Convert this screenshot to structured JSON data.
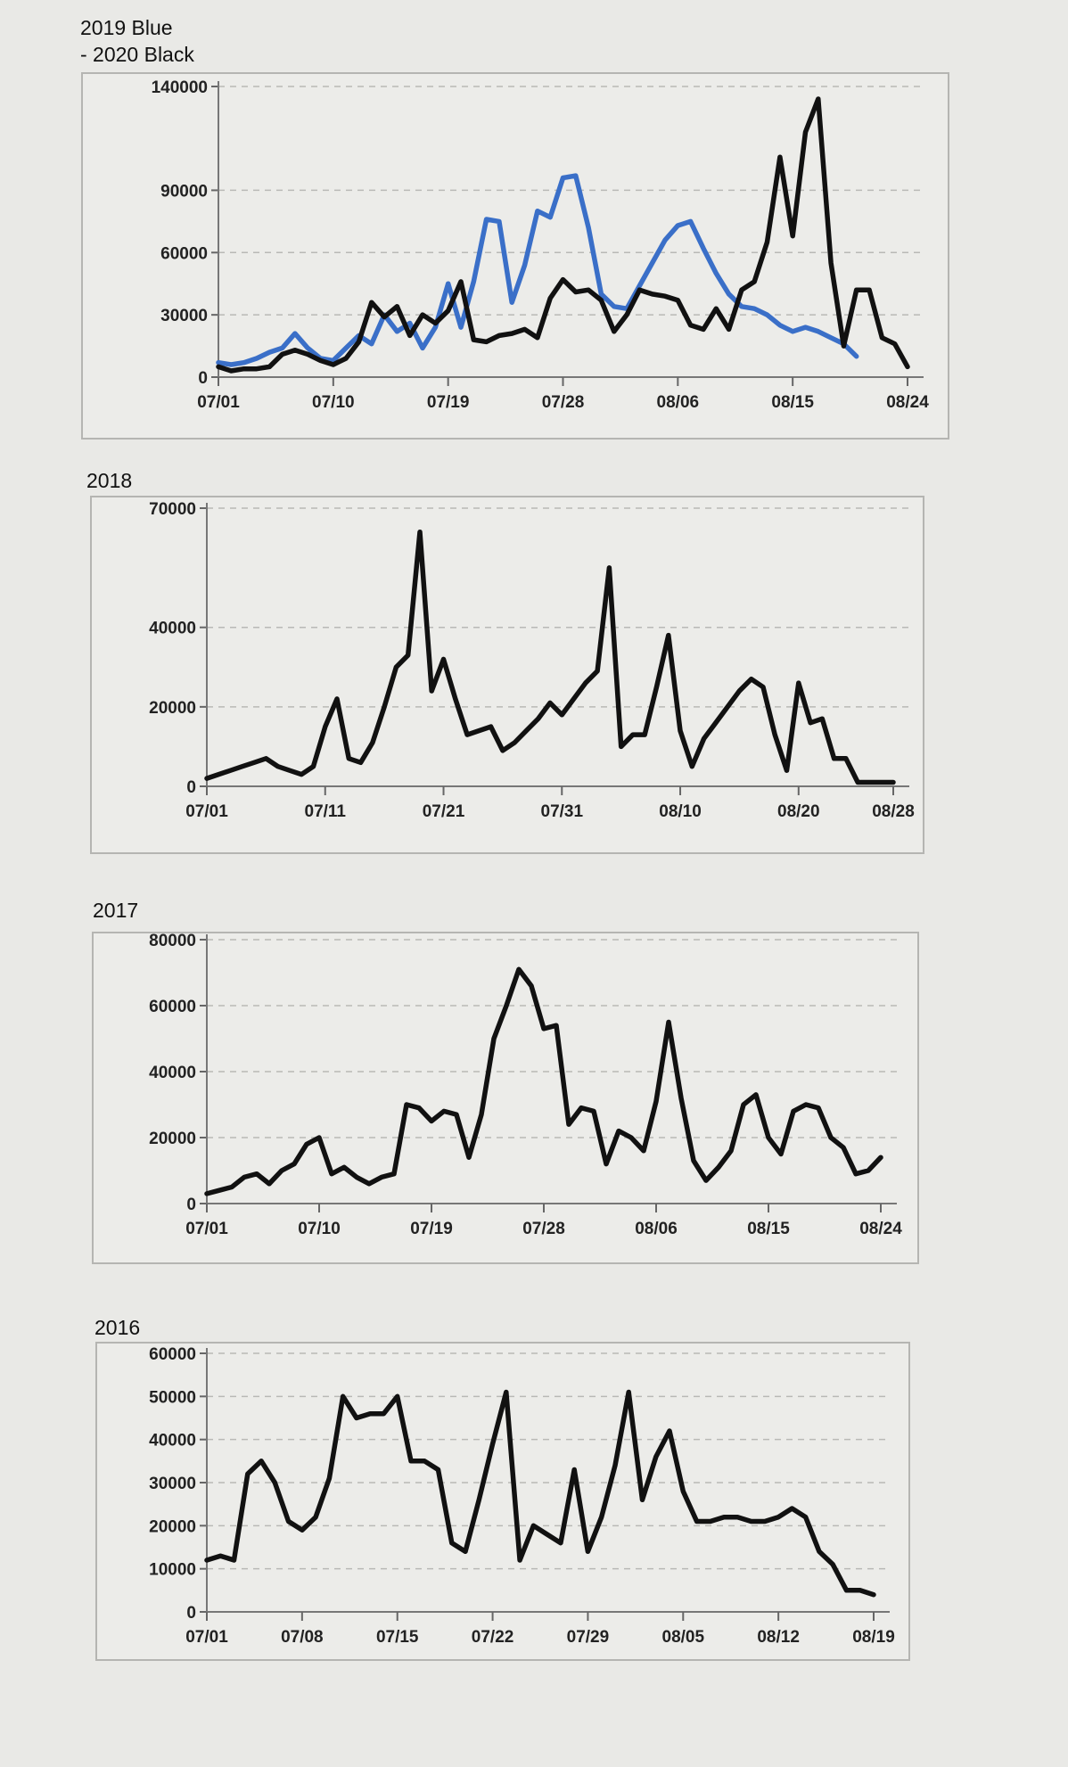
{
  "chart_data": [
    {
      "type": "line",
      "title_lines": [
        "2019 Blue",
        "- 2020 Black"
      ],
      "ylim": [
        0,
        140000
      ],
      "yticks": [
        0,
        30000,
        60000,
        90000,
        140000
      ],
      "xticks": [
        "07/01",
        "07/10",
        "07/19",
        "07/28",
        "08/06",
        "08/15",
        "08/24"
      ],
      "x_start": "07/01",
      "x_end": "08/24",
      "grid": true,
      "series": [
        {
          "color": "#3a6fc8",
          "x": [
            "07/01",
            "07/02",
            "07/03",
            "07/04",
            "07/05",
            "07/06",
            "07/07",
            "07/08",
            "07/09",
            "07/10",
            "07/11",
            "07/12",
            "07/13",
            "07/14",
            "07/15",
            "07/16",
            "07/17",
            "07/18",
            "07/19",
            "07/20",
            "07/21",
            "07/22",
            "07/23",
            "07/24",
            "07/25",
            "07/26",
            "07/27",
            "07/28",
            "07/29",
            "07/30",
            "07/31",
            "08/01",
            "08/02",
            "08/03",
            "08/04",
            "08/05",
            "08/06",
            "08/07",
            "08/08",
            "08/09",
            "08/10",
            "08/11",
            "08/12",
            "08/13",
            "08/14",
            "08/15",
            "08/16",
            "08/17",
            "08/18",
            "08/19",
            "08/20"
          ],
          "values": [
            7000,
            6000,
            7000,
            9000,
            12000,
            14000,
            21000,
            14000,
            9000,
            8000,
            14000,
            20000,
            16000,
            30000,
            22000,
            26000,
            14000,
            24000,
            45000,
            24000,
            46000,
            76000,
            75000,
            36000,
            54000,
            80000,
            77000,
            96000,
            97000,
            72000,
            40000,
            34000,
            33000,
            44000,
            55000,
            66000,
            73000,
            75000,
            62000,
            50000,
            40000,
            34000,
            33000,
            30000,
            25000,
            22000,
            24000,
            22000,
            19000,
            16000,
            10000
          ]
        },
        {
          "color": "#111111",
          "x": [
            "07/01",
            "07/02",
            "07/03",
            "07/04",
            "07/05",
            "07/06",
            "07/07",
            "07/08",
            "07/09",
            "07/10",
            "07/11",
            "07/12",
            "07/13",
            "07/14",
            "07/15",
            "07/16",
            "07/17",
            "07/18",
            "07/19",
            "07/20",
            "07/21",
            "07/22",
            "07/23",
            "07/24",
            "07/25",
            "07/26",
            "07/27",
            "07/28",
            "07/29",
            "07/30",
            "07/31",
            "08/01",
            "08/02",
            "08/03",
            "08/04",
            "08/05",
            "08/06",
            "08/07",
            "08/08",
            "08/09",
            "08/10",
            "08/11",
            "08/12",
            "08/13",
            "08/14",
            "08/15",
            "08/16",
            "08/17",
            "08/18",
            "08/19",
            "08/20",
            "08/21",
            "08/22",
            "08/23",
            "08/24"
          ],
          "values": [
            5000,
            3000,
            4000,
            4000,
            5000,
            11000,
            13000,
            11000,
            8000,
            6000,
            9000,
            17000,
            36000,
            29000,
            34000,
            20000,
            30000,
            26000,
            32000,
            46000,
            18000,
            17000,
            20000,
            21000,
            23000,
            19000,
            38000,
            47000,
            41000,
            42000,
            37000,
            22000,
            30000,
            42000,
            40000,
            39000,
            37000,
            25000,
            23000,
            33000,
            23000,
            42000,
            46000,
            65000,
            106000,
            68000,
            118000,
            134000,
            55000,
            15000,
            42000,
            42000,
            19000,
            16000,
            5000
          ]
        }
      ]
    },
    {
      "type": "line",
      "title_lines": [
        "2018"
      ],
      "ylim": [
        0,
        70000
      ],
      "yticks": [
        0,
        20000,
        40000,
        70000
      ],
      "xticks": [
        "07/01",
        "07/11",
        "07/21",
        "07/31",
        "08/10",
        "08/20",
        "08/28"
      ],
      "x_start": "07/01",
      "x_end": "08/28",
      "grid": true,
      "series": [
        {
          "color": "#111111",
          "x": [
            "07/01",
            "07/02",
            "07/03",
            "07/04",
            "07/05",
            "07/06",
            "07/07",
            "07/08",
            "07/09",
            "07/10",
            "07/11",
            "07/12",
            "07/13",
            "07/14",
            "07/15",
            "07/16",
            "07/17",
            "07/18",
            "07/19",
            "07/20",
            "07/21",
            "07/22",
            "07/23",
            "07/24",
            "07/25",
            "07/26",
            "07/27",
            "07/28",
            "07/29",
            "07/30",
            "07/31",
            "08/01",
            "08/02",
            "08/03",
            "08/04",
            "08/05",
            "08/06",
            "08/07",
            "08/08",
            "08/09",
            "08/10",
            "08/11",
            "08/12",
            "08/13",
            "08/14",
            "08/15",
            "08/16",
            "08/17",
            "08/18",
            "08/19",
            "08/20",
            "08/21",
            "08/22",
            "08/23",
            "08/24",
            "08/25",
            "08/26",
            "08/27",
            "08/28"
          ],
          "values": [
            2000,
            3000,
            4000,
            5000,
            6000,
            7000,
            5000,
            4000,
            3000,
            5000,
            15000,
            22000,
            7000,
            6000,
            11000,
            20000,
            30000,
            33000,
            64000,
            24000,
            32000,
            22000,
            13000,
            14000,
            15000,
            9000,
            11000,
            14000,
            17000,
            21000,
            18000,
            22000,
            26000,
            29000,
            55000,
            10000,
            13000,
            13000,
            25000,
            38000,
            14000,
            5000,
            12000,
            16000,
            20000,
            24000,
            27000,
            25000,
            13000,
            4000,
            26000,
            16000,
            17000,
            7000,
            7000,
            1000,
            1000,
            1000,
            1000
          ]
        }
      ]
    },
    {
      "type": "line",
      "title_lines": [
        "2017"
      ],
      "ylim": [
        0,
        80000
      ],
      "yticks": [
        0,
        20000,
        40000,
        60000,
        80000
      ],
      "xticks": [
        "07/01",
        "07/10",
        "07/19",
        "07/28",
        "08/06",
        "08/15",
        "08/24"
      ],
      "x_start": "07/01",
      "x_end": "08/24",
      "grid": true,
      "series": [
        {
          "color": "#111111",
          "x": [
            "07/01",
            "07/02",
            "07/03",
            "07/04",
            "07/05",
            "07/06",
            "07/07",
            "07/08",
            "07/09",
            "07/10",
            "07/11",
            "07/12",
            "07/13",
            "07/14",
            "07/15",
            "07/16",
            "07/17",
            "07/18",
            "07/19",
            "07/20",
            "07/21",
            "07/22",
            "07/23",
            "07/24",
            "07/25",
            "07/26",
            "07/27",
            "07/28",
            "07/29",
            "07/30",
            "07/31",
            "08/01",
            "08/02",
            "08/03",
            "08/04",
            "08/05",
            "08/06",
            "08/07",
            "08/08",
            "08/09",
            "08/10",
            "08/11",
            "08/12",
            "08/13",
            "08/14",
            "08/15",
            "08/16",
            "08/17",
            "08/18",
            "08/19",
            "08/20",
            "08/21",
            "08/22",
            "08/23",
            "08/24"
          ],
          "values": [
            3000,
            4000,
            5000,
            8000,
            9000,
            6000,
            10000,
            12000,
            18000,
            20000,
            9000,
            11000,
            8000,
            6000,
            8000,
            9000,
            30000,
            29000,
            25000,
            28000,
            27000,
            14000,
            27000,
            50000,
            60000,
            71000,
            66000,
            53000,
            54000,
            24000,
            29000,
            28000,
            12000,
            22000,
            20000,
            16000,
            31000,
            55000,
            32000,
            13000,
            7000,
            11000,
            16000,
            30000,
            33000,
            20000,
            15000,
            28000,
            30000,
            29000,
            20000,
            17000,
            9000,
            10000,
            14000
          ]
        }
      ]
    },
    {
      "type": "line",
      "title_lines": [
        "2016"
      ],
      "ylim": [
        0,
        60000
      ],
      "yticks": [
        0,
        10000,
        20000,
        30000,
        40000,
        50000,
        60000
      ],
      "xticks": [
        "07/01",
        "07/08",
        "07/15",
        "07/22",
        "07/29",
        "08/05",
        "08/12",
        "08/19"
      ],
      "x_start": "07/01",
      "x_end": "08/19",
      "grid": true,
      "series": [
        {
          "color": "#111111",
          "x": [
            "07/01",
            "07/02",
            "07/03",
            "07/04",
            "07/05",
            "07/06",
            "07/07",
            "07/08",
            "07/09",
            "07/10",
            "07/11",
            "07/12",
            "07/13",
            "07/14",
            "07/15",
            "07/16",
            "07/17",
            "07/18",
            "07/19",
            "07/20",
            "07/21",
            "07/22",
            "07/23",
            "07/24",
            "07/25",
            "07/26",
            "07/27",
            "07/28",
            "07/29",
            "07/30",
            "07/31",
            "08/01",
            "08/02",
            "08/03",
            "08/04",
            "08/05",
            "08/06",
            "08/07",
            "08/08",
            "08/09",
            "08/10",
            "08/11",
            "08/12",
            "08/13",
            "08/14",
            "08/15",
            "08/16",
            "08/17",
            "08/18",
            "08/19"
          ],
          "values": [
            12000,
            13000,
            12000,
            32000,
            35000,
            30000,
            21000,
            19000,
            22000,
            31000,
            50000,
            45000,
            46000,
            46000,
            50000,
            35000,
            35000,
            33000,
            16000,
            14000,
            26000,
            39000,
            51000,
            12000,
            20000,
            18000,
            16000,
            33000,
            14000,
            22000,
            34000,
            51000,
            26000,
            36000,
            42000,
            28000,
            21000,
            21000,
            22000,
            22000,
            21000,
            21000,
            22000,
            24000,
            22000,
            14000,
            11000,
            5000,
            5000,
            4000
          ]
        }
      ]
    }
  ]
}
